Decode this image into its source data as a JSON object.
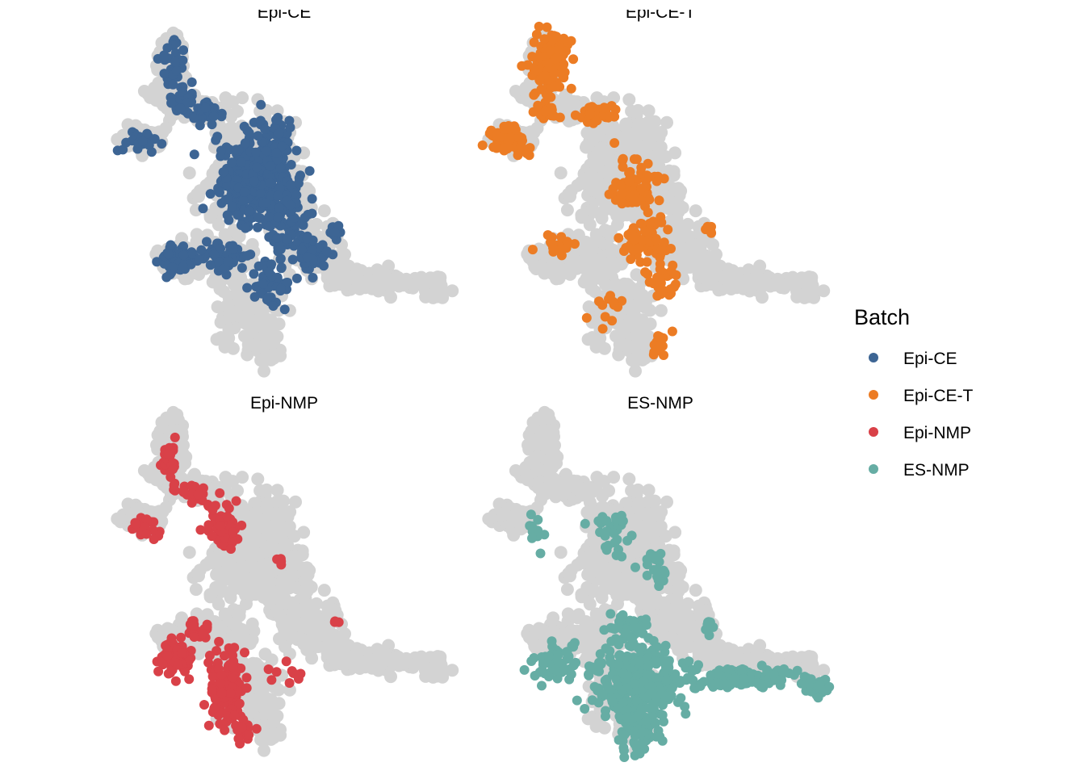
{
  "chart_data": {
    "type": "scatter",
    "panels": [
      "Epi-CE",
      "Epi-CE-T",
      "Epi-NMP",
      "ES-NMP"
    ],
    "legend": {
      "title": "Batch",
      "position": "right",
      "items": [
        {
          "label": "Epi-CE",
          "color": "#3d6594"
        },
        {
          "label": "Epi-CE-T",
          "color": "#ec7c24"
        },
        {
          "label": "Epi-NMP",
          "color": "#d94148"
        },
        {
          "label": "ES-NMP",
          "color": "#66ada4"
        }
      ]
    },
    "background_color": "#d3d3d3",
    "axes_visible": false,
    "grid": false
  }
}
